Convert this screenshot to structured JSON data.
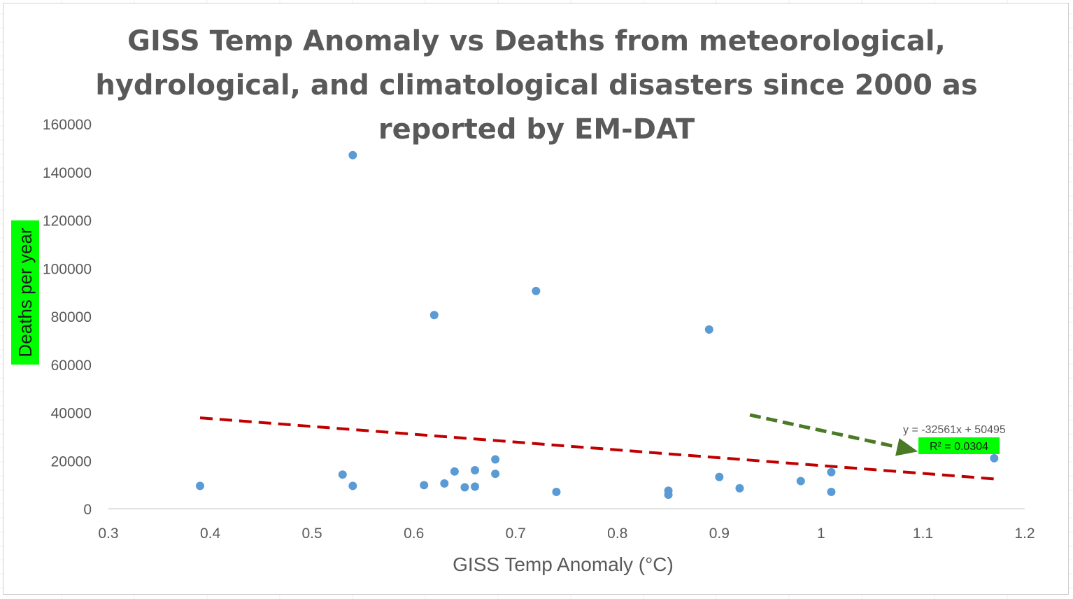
{
  "chart_data": {
    "type": "scatter",
    "title_lines": [
      "GISS Temp Anomaly vs Deaths from meteorological,",
      "hydrological, and climatological disasters since 2000 as",
      "reported by EM-DAT"
    ],
    "xlabel": "GISS Temp Anomaly (°C)",
    "ylabel": "Deaths per year",
    "xlim": [
      0.3,
      1.2
    ],
    "ylim": [
      0,
      160000
    ],
    "x_ticks": [
      "0.3",
      "0.4",
      "0.5",
      "0.6",
      "0.7",
      "0.8",
      "0.9",
      "1",
      "1.1",
      "1.2"
    ],
    "y_ticks": [
      "0",
      "20000",
      "40000",
      "60000",
      "80000",
      "100000",
      "120000",
      "140000",
      "160000"
    ],
    "grid": false,
    "series": [
      {
        "name": "Deaths per year",
        "color": "#5b9bd5",
        "points": [
          {
            "x": 0.39,
            "y": 9500
          },
          {
            "x": 0.53,
            "y": 14200
          },
          {
            "x": 0.54,
            "y": 147000
          },
          {
            "x": 0.54,
            "y": 9500
          },
          {
            "x": 0.61,
            "y": 9800
          },
          {
            "x": 0.62,
            "y": 80500
          },
          {
            "x": 0.63,
            "y": 10500
          },
          {
            "x": 0.64,
            "y": 15500
          },
          {
            "x": 0.65,
            "y": 8900
          },
          {
            "x": 0.66,
            "y": 16000
          },
          {
            "x": 0.66,
            "y": 9200
          },
          {
            "x": 0.68,
            "y": 20500
          },
          {
            "x": 0.68,
            "y": 14500
          },
          {
            "x": 0.72,
            "y": 90500
          },
          {
            "x": 0.74,
            "y": 7000
          },
          {
            "x": 0.85,
            "y": 7500
          },
          {
            "x": 0.85,
            "y": 5800
          },
          {
            "x": 0.89,
            "y": 74500
          },
          {
            "x": 0.9,
            "y": 13200
          },
          {
            "x": 0.92,
            "y": 8500
          },
          {
            "x": 0.98,
            "y": 11500
          },
          {
            "x": 1.01,
            "y": 15200
          },
          {
            "x": 1.01,
            "y": 7000
          },
          {
            "x": 1.17,
            "y": 21000
          }
        ]
      }
    ],
    "trendline": {
      "type": "linear",
      "slope": -32561,
      "intercept": 50495,
      "x_range": [
        0.39,
        1.17
      ],
      "color": "#c00000",
      "equation_label": "y = -32561x + 50495",
      "r2_label": "R² = 0.0304"
    },
    "annotations": [
      {
        "kind": "arrow",
        "color": "#4a7a26",
        "from": {
          "x": 0.93,
          "y": 39000
        },
        "to": {
          "x": 1.095,
          "y": 23800
        }
      }
    ],
    "highlight_color": "#00ff00",
    "axis_color": "#d9d9d9",
    "text_color": "#595959"
  }
}
